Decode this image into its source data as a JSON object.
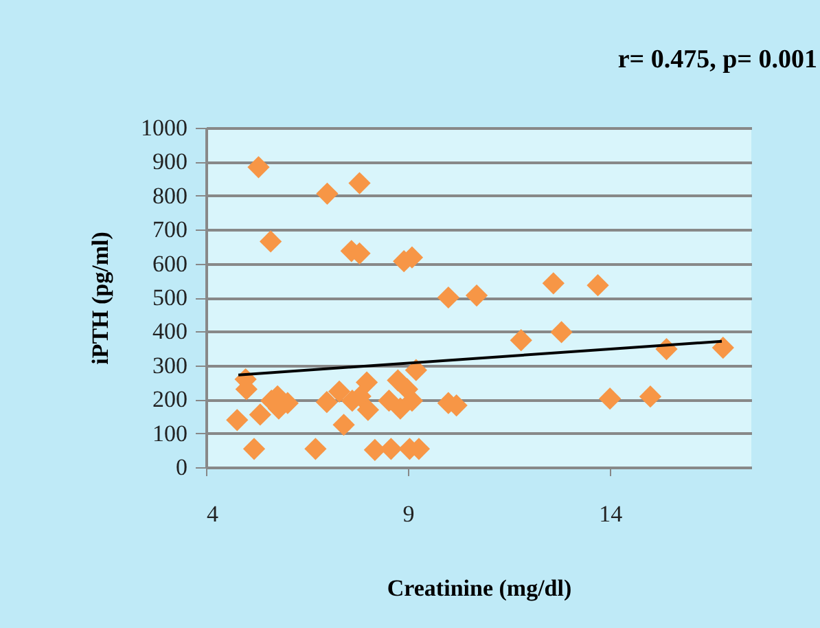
{
  "chart_data": {
    "type": "scatter",
    "xlabel": "Creatinine (mg/dl)",
    "ylabel": "iPTH (pg/ml)",
    "annotations": [
      "r= 0.475, p= 0.001"
    ],
    "xlim": [
      4,
      17.5
    ],
    "xticks": [
      4,
      9,
      14
    ],
    "ylim": [
      0,
      1000
    ],
    "yticks": [
      0,
      100,
      200,
      300,
      400,
      500,
      600,
      700,
      800,
      900,
      1000
    ],
    "grid": "y",
    "series": [
      {
        "color": "#f79646",
        "marker": "diamond",
        "x": [
          5.3,
          5.6,
          7.0,
          7.8,
          7.6,
          7.8,
          8.9,
          9.1,
          10.0,
          10.7,
          11.8,
          12.6,
          12.8,
          13.7,
          15.4,
          16.8,
          14.0,
          15.0,
          10.2,
          10.0,
          4.98,
          5.0,
          4.77,
          5.19,
          5.34,
          5.62,
          5.8,
          6.02,
          5.77,
          6.71,
          6.99,
          7.3,
          7.41,
          7.62,
          7.98,
          8.01,
          7.82,
          8.18,
          8.58,
          9.04,
          9.27,
          8.53,
          8.75,
          8.81,
          8.98,
          9.1,
          9.2
        ],
        "values": [
          884,
          665,
          806,
          837,
          637,
          630,
          607,
          618,
          500,
          506,
          374,
          542,
          398,
          536,
          348,
          352,
          202,
          208,
          182,
          189,
          259,
          230,
          139,
          54,
          155,
          196,
          173,
          189,
          209,
          54,
          192,
          223,
          125,
          196,
          250,
          169,
          209,
          51,
          54,
          54,
          54,
          196,
          256,
          173,
          230,
          196,
          286
        ]
      },
      {
        "type": "line",
        "color": "#000000",
        "x": [
          4.8,
          16.77
        ],
        "values": [
          272,
          371
        ]
      }
    ]
  }
}
